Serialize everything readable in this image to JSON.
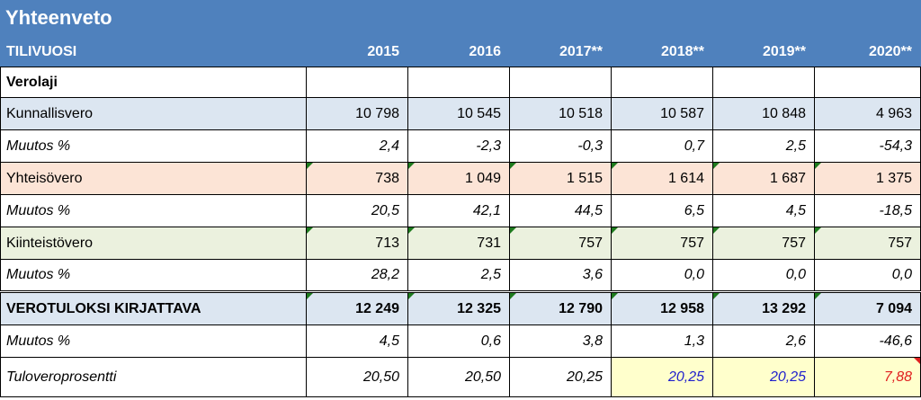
{
  "title": "Yhteenveto",
  "header": {
    "label": "TILIVUOSI",
    "years": [
      "2015",
      "2016",
      "2017**",
      "2018**",
      "2019**",
      "2020**"
    ]
  },
  "section_label": "Verolaji",
  "rows": {
    "kunnallisvero": {
      "label": "Kunnallisvero",
      "values": [
        "10 798",
        "10 545",
        "10 518",
        "10 587",
        "10 848",
        "4 963"
      ]
    },
    "kunnallisvero_muutos": {
      "label": "Muutos %",
      "values": [
        "2,4",
        "-2,3",
        "-0,3",
        "0,7",
        "2,5",
        "-54,3"
      ]
    },
    "yhteisovero": {
      "label": "Yhteisövero",
      "values": [
        "738",
        "1 049",
        "1 515",
        "1 614",
        "1 687",
        "1 375"
      ]
    },
    "yhteisovero_muutos": {
      "label": "Muutos %",
      "values": [
        "20,5",
        "42,1",
        "44,5",
        "6,5",
        "4,5",
        "-18,5"
      ]
    },
    "kiinteistovero": {
      "label": "Kiinteistövero",
      "values": [
        "713",
        "731",
        "757",
        "757",
        "757",
        "757"
      ]
    },
    "kiinteistovero_muutos": {
      "label": "Muutos %",
      "values": [
        "28,2",
        "2,5",
        "3,6",
        "0,0",
        "0,0",
        "0,0"
      ]
    },
    "total": {
      "label": "VEROTULOKSI KIRJATTAVA",
      "values": [
        "12 249",
        "12 325",
        "12 790",
        "12 958",
        "13 292",
        "7 094"
      ]
    },
    "total_muutos": {
      "label": "Muutos %",
      "values": [
        "4,5",
        "0,6",
        "3,8",
        "1,3",
        "2,6",
        "-46,6"
      ]
    },
    "tuloveroprosentti": {
      "label": "Tuloveroprosentti",
      "values": [
        "20,50",
        "20,50",
        "20,25",
        "20,25",
        "20,25",
        "7,88"
      ]
    }
  },
  "colors": {
    "header_blue": "#4f81bd",
    "row_blue": "#dce6f1",
    "row_peach": "#fce4d6",
    "row_green": "#ebf1de",
    "forecast_yellow": "#ffffcc",
    "forecast_text_blue": "#1f1fcc",
    "alert_red": "#e02020",
    "comment_marker_green": "#1e7b1e"
  }
}
